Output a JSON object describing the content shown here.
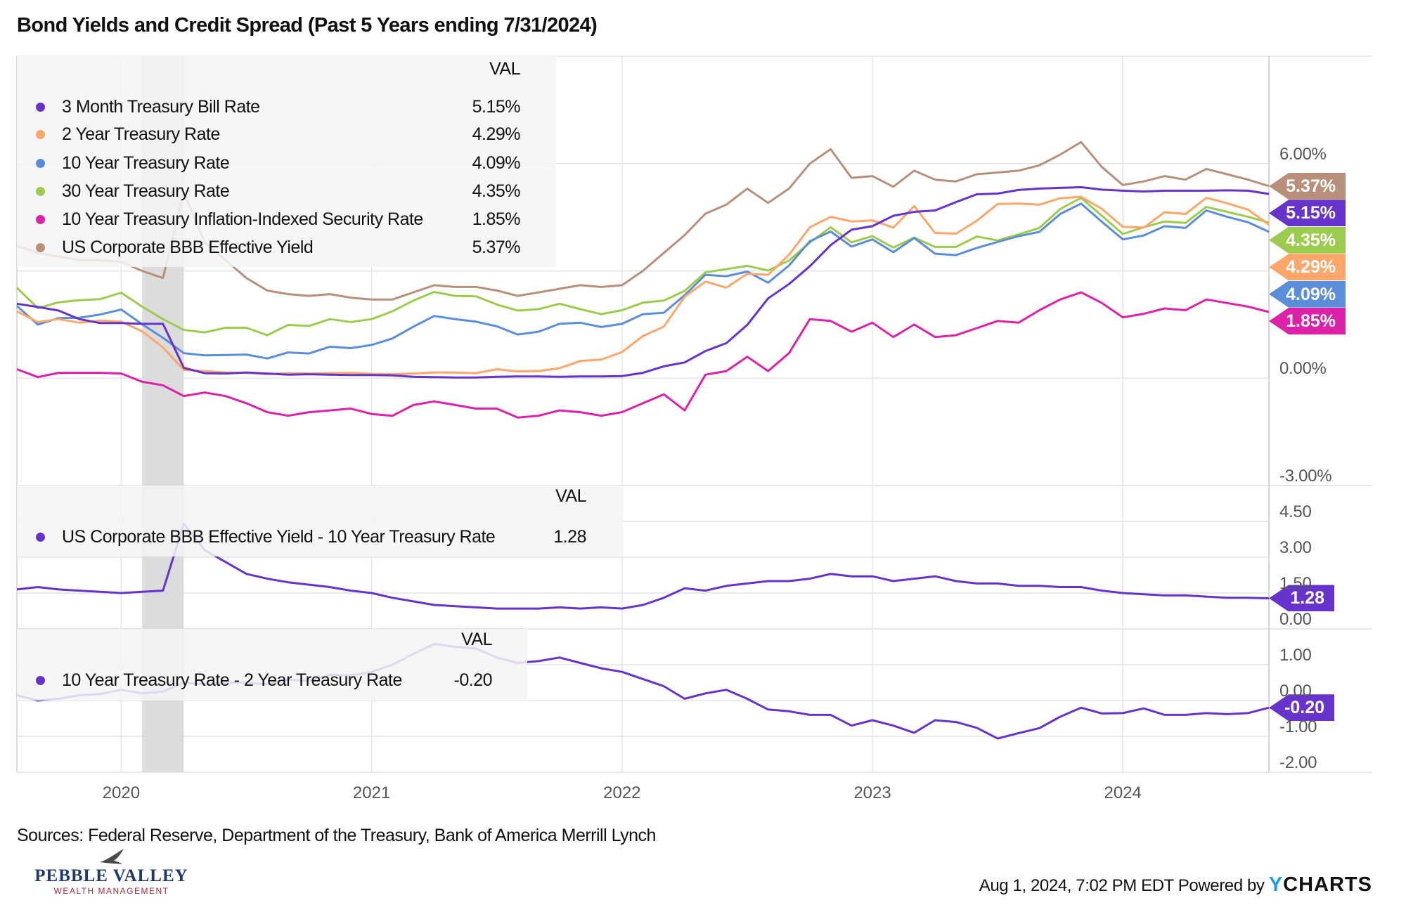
{
  "title": "Bond Yields and Credit Spread (Past 5 Years ending 7/31/2024)",
  "footer": {
    "sources": "Sources: Federal Reserve, Department of the Treasury, Bank of America Merrill Lynch",
    "timestamp": "Aug 1, 2024, 7:02 PM EDT Powered by",
    "brand_y": "Y",
    "brand_rest": "CHARTS",
    "logo_line1": "PEBBLE VALLEY",
    "logo_line2": "WEALTH MANAGEMENT",
    "logo_colors": {
      "primary": "#1f3a6b",
      "secondary": "#b0293a"
    }
  },
  "chart_data": {
    "type": "line",
    "x_tick_labels": [
      "2020",
      "2021",
      "2022",
      "2023",
      "2024"
    ],
    "shaded_period": [
      "2020-02",
      "2020-04"
    ],
    "x": [
      "2019-07",
      "2019-08",
      "2019-09",
      "2019-10",
      "2019-11",
      "2019-12",
      "2020-01",
      "2020-02",
      "2020-03",
      "2020-04",
      "2020-05",
      "2020-06",
      "2020-07",
      "2020-08",
      "2020-09",
      "2020-10",
      "2020-11",
      "2020-12",
      "2021-01",
      "2021-02",
      "2021-03",
      "2021-04",
      "2021-05",
      "2021-06",
      "2021-07",
      "2021-08",
      "2021-09",
      "2021-10",
      "2021-11",
      "2021-12",
      "2022-01",
      "2022-02",
      "2022-03",
      "2022-04",
      "2022-05",
      "2022-06",
      "2022-07",
      "2022-08",
      "2022-09",
      "2022-10",
      "2022-11",
      "2022-12",
      "2023-01",
      "2023-02",
      "2023-03",
      "2023-04",
      "2023-05",
      "2023-06",
      "2023-07",
      "2023-08",
      "2023-09",
      "2023-10",
      "2023-11",
      "2023-12",
      "2024-01",
      "2024-02",
      "2024-03",
      "2024-04",
      "2024-05",
      "2024-06",
      "2024-07"
    ],
    "panels": [
      {
        "legend_header": "VAL",
        "ylim": [
          -3,
          9
        ],
        "grid_step": 3,
        "y_tick_labels": [
          {
            "v": 6,
            "label": "6.00%"
          },
          {
            "v": 0,
            "label": "0.00%"
          },
          {
            "v": -3,
            "label": "-3.00%"
          }
        ],
        "series": [
          {
            "name": "3 Month Treasury Bill Rate",
            "color": "#6633cc",
            "last": "5.15%",
            "values": [
              2.08,
              1.99,
              1.89,
              1.65,
              1.54,
              1.54,
              1.52,
              1.52,
              0.29,
              0.14,
              0.13,
              0.16,
              0.13,
              0.1,
              0.11,
              0.1,
              0.09,
              0.09,
              0.08,
              0.04,
              0.03,
              0.02,
              0.02,
              0.04,
              0.05,
              0.05,
              0.04,
              0.05,
              0.05,
              0.06,
              0.15,
              0.33,
              0.44,
              0.76,
              0.98,
              1.49,
              2.23,
              2.63,
              3.13,
              3.72,
              4.15,
              4.25,
              4.54,
              4.65,
              4.69,
              4.92,
              5.14,
              5.16,
              5.26,
              5.3,
              5.32,
              5.34,
              5.27,
              5.24,
              5.22,
              5.24,
              5.24,
              5.24,
              5.25,
              5.24,
              5.15
            ]
          },
          {
            "name": "2 Year Treasury Rate",
            "color": "#ffa66b",
            "last": "4.29%",
            "values": [
              1.87,
              1.57,
              1.65,
              1.55,
              1.61,
              1.58,
              1.31,
              0.86,
              0.23,
              0.2,
              0.16,
              0.15,
              0.11,
              0.14,
              0.13,
              0.14,
              0.15,
              0.12,
              0.11,
              0.13,
              0.16,
              0.16,
              0.14,
              0.25,
              0.19,
              0.2,
              0.28,
              0.48,
              0.52,
              0.73,
              1.18,
              1.44,
              2.28,
              2.7,
              2.53,
              2.92,
              2.89,
              3.45,
              4.22,
              4.51,
              4.38,
              4.41,
              4.21,
              4.81,
              4.06,
              4.04,
              4.4,
              4.87,
              4.88,
              4.85,
              5.03,
              5.07,
              4.73,
              4.23,
              4.21,
              4.64,
              4.59,
              5.04,
              4.89,
              4.71,
              4.29
            ]
          },
          {
            "name": "10 Year Treasury Rate",
            "color": "#5b8ed8",
            "last": "4.09%",
            "values": [
              2.02,
              1.5,
              1.68,
              1.69,
              1.78,
              1.92,
              1.51,
              1.13,
              0.7,
              0.64,
              0.65,
              0.66,
              0.55,
              0.72,
              0.69,
              0.88,
              0.84,
              0.93,
              1.11,
              1.44,
              1.74,
              1.65,
              1.58,
              1.45,
              1.22,
              1.3,
              1.52,
              1.55,
              1.43,
              1.52,
              1.79,
              1.83,
              2.32,
              2.89,
              2.85,
              2.98,
              2.67,
              3.15,
              3.83,
              4.1,
              3.68,
              3.88,
              3.52,
              3.92,
              3.48,
              3.44,
              3.64,
              3.81,
              3.97,
              4.09,
              4.59,
              4.88,
              4.37,
              3.88,
              3.99,
              4.25,
              4.2,
              4.69,
              4.51,
              4.36,
              4.09
            ]
          },
          {
            "name": "30 Year Treasury Rate",
            "color": "#9ccc4e",
            "last": "4.35%",
            "values": [
              2.53,
              1.96,
              2.12,
              2.18,
              2.21,
              2.39,
              2.0,
              1.65,
              1.35,
              1.28,
              1.41,
              1.41,
              1.2,
              1.49,
              1.46,
              1.65,
              1.57,
              1.65,
              1.87,
              2.17,
              2.41,
              2.3,
              2.29,
              2.06,
              1.89,
              1.93,
              2.08,
              1.93,
              1.79,
              1.9,
              2.11,
              2.17,
              2.44,
              2.96,
              3.05,
              3.14,
              3.01,
              3.29,
              3.79,
              4.22,
              3.8,
              3.97,
              3.65,
              3.93,
              3.67,
              3.67,
              3.96,
              3.85,
              4.02,
              4.2,
              4.73,
              5.04,
              4.54,
              4.03,
              4.22,
              4.38,
              4.34,
              4.79,
              4.65,
              4.51,
              4.35
            ]
          },
          {
            "name": "10 Year Treasury Inflation-Indexed Security Rate",
            "color": "#dd22aa",
            "last": "1.85%",
            "values": [
              0.25,
              0.03,
              0.15,
              0.15,
              0.15,
              0.13,
              -0.1,
              -0.2,
              -0.5,
              -0.4,
              -0.5,
              -0.7,
              -0.95,
              -1.05,
              -0.95,
              -0.9,
              -0.85,
              -1.0,
              -1.05,
              -0.75,
              -0.65,
              -0.75,
              -0.85,
              -0.85,
              -1.1,
              -1.05,
              -0.9,
              -0.95,
              -1.05,
              -0.95,
              -0.7,
              -0.45,
              -0.9,
              0.1,
              0.2,
              0.6,
              0.2,
              0.7,
              1.65,
              1.6,
              1.3,
              1.55,
              1.15,
              1.5,
              1.15,
              1.2,
              1.4,
              1.6,
              1.55,
              1.9,
              2.2,
              2.4,
              2.1,
              1.7,
              1.8,
              1.95,
              1.9,
              2.2,
              2.1,
              2.0,
              1.85
            ]
          },
          {
            "name": "US Corporate BBB Effective Yield",
            "color": "#b8907a",
            "last": "5.37%",
            "values": [
              3.7,
              3.5,
              3.4,
              3.3,
              3.3,
              3.25,
              3.0,
              2.8,
              5.2,
              3.8,
              3.3,
              2.8,
              2.45,
              2.35,
              2.3,
              2.35,
              2.25,
              2.2,
              2.2,
              2.4,
              2.6,
              2.55,
              2.55,
              2.45,
              2.3,
              2.4,
              2.5,
              2.6,
              2.55,
              2.6,
              3.0,
              3.5,
              4.0,
              4.6,
              4.85,
              5.3,
              4.9,
              5.3,
              6.0,
              6.4,
              5.6,
              5.65,
              5.35,
              5.8,
              5.55,
              5.5,
              5.7,
              5.75,
              5.8,
              5.95,
              6.25,
              6.6,
              5.9,
              5.4,
              5.5,
              5.65,
              5.55,
              5.85,
              5.7,
              5.55,
              5.37
            ]
          }
        ]
      },
      {
        "legend_header": "VAL",
        "ylim": [
          0,
          6
        ],
        "grid_step": 1.5,
        "y_tick_labels": [
          {
            "v": 4.5,
            "label": "4.50"
          },
          {
            "v": 3,
            "label": "3.00"
          },
          {
            "v": 1.5,
            "label": "1.50"
          },
          {
            "v": 0,
            "label": "0.00"
          }
        ],
        "series": [
          {
            "name": "US Corporate BBB Effective Yield - 10 Year Treasury Rate",
            "color": "#6633cc",
            "last": "1.28",
            "values": [
              1.65,
              1.75,
              1.65,
              1.6,
              1.55,
              1.5,
              1.55,
              1.6,
              4.4,
              3.3,
              2.8,
              2.3,
              2.1,
              1.95,
              1.85,
              1.75,
              1.6,
              1.5,
              1.3,
              1.15,
              1.0,
              0.95,
              0.9,
              0.85,
              0.85,
              0.85,
              0.9,
              0.85,
              0.9,
              0.85,
              1.0,
              1.3,
              1.7,
              1.6,
              1.8,
              1.9,
              2.0,
              2.0,
              2.1,
              2.3,
              2.2,
              2.2,
              2.0,
              2.1,
              2.2,
              2.0,
              1.9,
              1.9,
              1.8,
              1.8,
              1.75,
              1.75,
              1.6,
              1.5,
              1.45,
              1.4,
              1.4,
              1.35,
              1.3,
              1.3,
              1.28
            ]
          }
        ]
      },
      {
        "legend_header": "VAL",
        "ylim": [
          -2,
          2
        ],
        "grid_step": 1,
        "y_tick_labels": [
          {
            "v": 1,
            "label": "1.00"
          },
          {
            "v": 0,
            "label": "0.00"
          },
          {
            "v": -1,
            "label": "-1.00"
          },
          {
            "v": -2,
            "label": "-2.00"
          }
        ],
        "series": [
          {
            "name": "10 Year Treasury Rate - 2 Year Treasury Rate",
            "color": "#6633cc",
            "last": "-0.20",
            "values": [
              0.15,
              0.0,
              0.05,
              0.15,
              0.18,
              0.3,
              0.2,
              0.25,
              0.5,
              0.45,
              0.5,
              0.5,
              0.45,
              0.58,
              0.55,
              0.72,
              0.7,
              0.8,
              1.0,
              1.3,
              1.58,
              1.5,
              1.45,
              1.2,
              1.05,
              1.1,
              1.2,
              1.05,
              0.9,
              0.8,
              0.6,
              0.4,
              0.05,
              0.2,
              0.3,
              0.05,
              -0.25,
              -0.3,
              -0.4,
              -0.4,
              -0.7,
              -0.55,
              -0.7,
              -0.9,
              -0.55,
              -0.6,
              -0.76,
              -1.06,
              -0.91,
              -0.77,
              -0.45,
              -0.2,
              -0.36,
              -0.35,
              -0.22,
              -0.4,
              -0.4,
              -0.35,
              -0.38,
              -0.35,
              -0.2
            ]
          }
        ]
      }
    ]
  }
}
